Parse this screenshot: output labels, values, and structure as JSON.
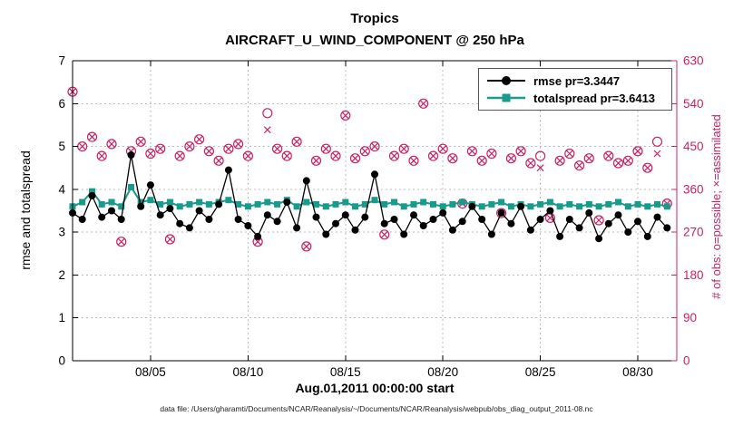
{
  "footer": {
    "datafile": "data file: /Users/gharamti/Documents/NCAR/Reanalysis/~/Documents/NCAR/Reanalysis/webpub/obs_diag_output_2011-08.nc"
  },
  "colors": {
    "rmse": "#000000",
    "totalspread": "#189b8b",
    "obs": "#cc2064",
    "grid": "#bdbdbd",
    "frame": "#000000",
    "background": "#ffffff"
  },
  "chart_data": {
    "type": "line",
    "title": "Tropics",
    "subtitle": "AIRCRAFT_U_WIND_COMPONENT @ 250 hPa",
    "xlabel": "Aug.01,2011 00:00:00 start",
    "ylabel_left": "rmse and totalspread",
    "ylabel_right": "# of obs: o=possible; ×=assimilated",
    "legend_position": "top-right",
    "grid": "dashed",
    "xlim": [
      1,
      32
    ],
    "ylim_left": [
      0,
      7
    ],
    "ylim_right": [
      0,
      630
    ],
    "yticks_left": [
      0,
      1,
      2,
      3,
      4,
      5,
      6,
      7
    ],
    "yticks_right": [
      0,
      90,
      180,
      270,
      360,
      450,
      540,
      630
    ],
    "xticks": [
      {
        "value": 5,
        "label": "08/05"
      },
      {
        "value": 10,
        "label": "08/10"
      },
      {
        "value": 15,
        "label": "08/15"
      },
      {
        "value": 20,
        "label": "08/20"
      },
      {
        "value": 25,
        "label": "08/25"
      },
      {
        "value": 30,
        "label": "08/30"
      }
    ],
    "x_days": [
      1,
      1.5,
      2,
      2.5,
      3,
      3.5,
      4,
      4.5,
      5,
      5.5,
      6,
      6.5,
      7,
      7.5,
      8,
      8.5,
      9,
      9.5,
      10,
      10.5,
      11,
      11.5,
      12,
      12.5,
      13,
      13.5,
      14,
      14.5,
      15,
      15.5,
      16,
      16.5,
      17,
      17.5,
      18,
      18.5,
      19,
      19.5,
      20,
      20.5,
      21,
      21.5,
      22,
      22.5,
      23,
      23.5,
      24,
      24.5,
      25,
      25.5,
      26,
      26.5,
      27,
      27.5,
      28,
      28.5,
      29,
      29.5,
      30,
      30.5,
      31,
      31.5
    ],
    "series": [
      {
        "name": "rmse pr=3.3447",
        "marker": "circle",
        "values": [
          3.45,
          3.3,
          3.85,
          3.35,
          3.5,
          3.3,
          4.8,
          3.6,
          4.1,
          3.4,
          3.55,
          3.2,
          3.1,
          3.5,
          3.3,
          3.65,
          4.45,
          3.3,
          3.15,
          2.9,
          3.4,
          3.25,
          3.7,
          3.1,
          4.2,
          3.35,
          2.95,
          3.2,
          3.4,
          3.05,
          3.35,
          4.35,
          3.2,
          3.3,
          2.95,
          3.4,
          3.15,
          3.3,
          3.45,
          3.05,
          3.25,
          3.6,
          3.3,
          2.95,
          3.45,
          3.2,
          3.6,
          3.05,
          3.3,
          3.5,
          2.9,
          3.3,
          3.1,
          3.45,
          2.85,
          3.2,
          3.4,
          3.0,
          3.25,
          2.9,
          3.35,
          3.1
        ]
      },
      {
        "name": "totalspread pr=3.6413",
        "marker": "square",
        "values": [
          3.6,
          3.7,
          3.95,
          3.65,
          3.7,
          3.6,
          4.05,
          3.7,
          3.75,
          3.65,
          3.7,
          3.6,
          3.65,
          3.7,
          3.65,
          3.7,
          3.75,
          3.65,
          3.6,
          3.65,
          3.7,
          3.65,
          3.75,
          3.6,
          3.7,
          3.65,
          3.6,
          3.65,
          3.7,
          3.6,
          3.65,
          3.75,
          3.65,
          3.7,
          3.6,
          3.65,
          3.7,
          3.65,
          3.6,
          3.65,
          3.7,
          3.65,
          3.6,
          3.65,
          3.7,
          3.6,
          3.65,
          3.6,
          3.65,
          3.7,
          3.6,
          3.65,
          3.6,
          3.65,
          3.6,
          3.65,
          3.7,
          3.6,
          3.65,
          3.6,
          3.65,
          3.6
        ]
      }
    ],
    "obs_possible": [
      565,
      450,
      470,
      430,
      455,
      250,
      440,
      460,
      435,
      445,
      255,
      430,
      450,
      465,
      440,
      420,
      445,
      455,
      430,
      250,
      520,
      445,
      430,
      460,
      240,
      420,
      445,
      430,
      515,
      425,
      440,
      450,
      265,
      430,
      445,
      420,
      540,
      430,
      445,
      425,
      330,
      440,
      420,
      435,
      310,
      425,
      440,
      415,
      430,
      300,
      420,
      435,
      410,
      425,
      295,
      430,
      415,
      420,
      440,
      405,
      460,
      330
    ],
    "obs_assimilated": [
      565,
      450,
      470,
      430,
      455,
      250,
      440,
      460,
      435,
      445,
      255,
      430,
      450,
      465,
      440,
      420,
      445,
      455,
      430,
      250,
      485,
      445,
      430,
      460,
      240,
      420,
      445,
      430,
      515,
      425,
      440,
      450,
      265,
      430,
      445,
      420,
      540,
      430,
      445,
      425,
      330,
      440,
      420,
      435,
      310,
      425,
      440,
      415,
      405,
      300,
      420,
      435,
      410,
      425,
      295,
      430,
      415,
      420,
      440,
      405,
      435,
      330
    ]
  }
}
